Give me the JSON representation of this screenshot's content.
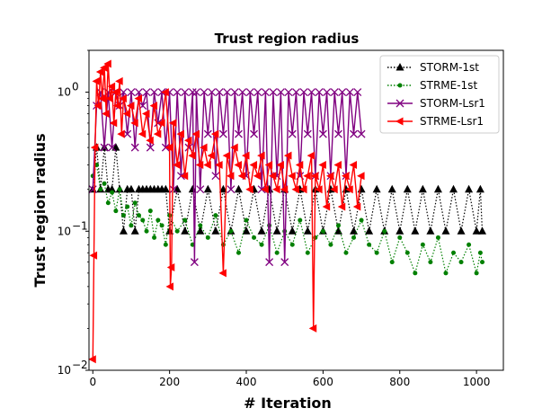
{
  "chart_data": {
    "type": "line",
    "title": "Trust region radius",
    "xlabel": "# Iteration",
    "ylabel": "Trust region radius",
    "xlim": [
      -10,
      1070
    ],
    "ylim": [
      0.01,
      2.0
    ],
    "yscale": "log",
    "grid": false,
    "legend_position": "top-right",
    "x_ticks": [
      {
        "value": 0,
        "label": "0"
      },
      {
        "value": 200,
        "label": "200"
      },
      {
        "value": 400,
        "label": "400"
      },
      {
        "value": 600,
        "label": "600"
      },
      {
        "value": 800,
        "label": "800"
      },
      {
        "value": 1000,
        "label": "1000"
      }
    ],
    "y_ticks": [
      {
        "value": 0.01,
        "base": "10",
        "exp": "−2"
      },
      {
        "value": 0.1,
        "base": "10",
        "exp": "−1"
      },
      {
        "value": 1,
        "base": "10",
        "exp": "0"
      }
    ],
    "series": [
      {
        "name": "STORM-1st",
        "color": "#000000",
        "marker": "triangle-up",
        "linestyle": "dotted",
        "x": [
          0,
          10,
          20,
          30,
          40,
          50,
          60,
          70,
          80,
          90,
          100,
          110,
          120,
          130,
          140,
          150,
          160,
          170,
          180,
          190,
          200,
          220,
          240,
          260,
          280,
          300,
          320,
          340,
          360,
          380,
          400,
          420,
          440,
          460,
          480,
          500,
          520,
          540,
          560,
          580,
          600,
          620,
          640,
          660,
          680,
          700,
          720,
          740,
          760,
          780,
          800,
          820,
          840,
          860,
          880,
          900,
          920,
          940,
          960,
          980,
          1000,
          1010,
          1015
        ],
        "y": [
          0.2,
          0.4,
          0.2,
          0.4,
          0.2,
          0.2,
          0.4,
          0.2,
          0.1,
          0.2,
          0.2,
          0.1,
          0.2,
          0.2,
          0.2,
          0.2,
          0.2,
          0.2,
          0.2,
          0.2,
          0.1,
          0.2,
          0.1,
          0.2,
          0.1,
          0.2,
          0.1,
          0.2,
          0.1,
          0.2,
          0.1,
          0.2,
          0.1,
          0.2,
          0.1,
          0.2,
          0.1,
          0.2,
          0.1,
          0.2,
          0.1,
          0.2,
          0.1,
          0.2,
          0.1,
          0.2,
          0.1,
          0.2,
          0.1,
          0.2,
          0.1,
          0.2,
          0.1,
          0.2,
          0.1,
          0.2,
          0.1,
          0.2,
          0.1,
          0.2,
          0.1,
          0.2,
          0.1
        ]
      },
      {
        "name": "STRME-1st",
        "color": "#008000",
        "marker": "circle",
        "linestyle": "dotted",
        "x": [
          0,
          10,
          20,
          30,
          40,
          50,
          60,
          70,
          80,
          90,
          100,
          110,
          120,
          130,
          140,
          150,
          160,
          170,
          180,
          190,
          200,
          220,
          240,
          260,
          280,
          300,
          320,
          340,
          360,
          380,
          400,
          420,
          440,
          460,
          480,
          500,
          520,
          540,
          560,
          580,
          600,
          620,
          640,
          660,
          680,
          700,
          720,
          740,
          760,
          780,
          800,
          820,
          840,
          860,
          880,
          900,
          920,
          940,
          960,
          980,
          1000,
          1010,
          1015
        ],
        "y": [
          0.25,
          0.3,
          0.2,
          0.22,
          0.16,
          0.19,
          0.14,
          0.2,
          0.13,
          0.15,
          0.11,
          0.16,
          0.13,
          0.12,
          0.1,
          0.14,
          0.09,
          0.12,
          0.11,
          0.08,
          0.13,
          0.1,
          0.12,
          0.08,
          0.11,
          0.09,
          0.13,
          0.08,
          0.1,
          0.07,
          0.12,
          0.09,
          0.08,
          0.11,
          0.07,
          0.1,
          0.08,
          0.12,
          0.07,
          0.09,
          0.1,
          0.08,
          0.11,
          0.07,
          0.09,
          0.12,
          0.08,
          0.07,
          0.1,
          0.06,
          0.09,
          0.07,
          0.05,
          0.08,
          0.06,
          0.09,
          0.05,
          0.07,
          0.06,
          0.08,
          0.05,
          0.07,
          0.06
        ]
      },
      {
        "name": "STORM-Lsr1",
        "color": "#800080",
        "marker": "x",
        "linestyle": "solid",
        "x": [
          0,
          10,
          20,
          30,
          40,
          50,
          60,
          70,
          80,
          90,
          100,
          110,
          120,
          130,
          140,
          150,
          160,
          170,
          180,
          190,
          200,
          210,
          220,
          230,
          240,
          250,
          260,
          265,
          270,
          280,
          290,
          300,
          310,
          320,
          330,
          340,
          350,
          360,
          370,
          380,
          390,
          400,
          410,
          420,
          430,
          440,
          450,
          460,
          470,
          480,
          490,
          500,
          510,
          520,
          530,
          540,
          550,
          560,
          570,
          580,
          590,
          600,
          610,
          620,
          630,
          640,
          650,
          660,
          670,
          680,
          690,
          700
        ],
        "y": [
          0.2,
          0.8,
          1,
          0.4,
          1,
          0.4,
          1,
          0.8,
          1,
          0.5,
          1,
          0.4,
          1,
          0.8,
          1,
          0.4,
          1,
          0.6,
          1,
          0.4,
          1,
          0.2,
          1,
          0.25,
          1,
          0.4,
          1,
          0.06,
          1,
          0.2,
          1,
          0.5,
          1,
          0.25,
          1,
          0.5,
          1,
          0.2,
          1,
          0.5,
          1,
          0.25,
          1,
          0.5,
          1,
          0.2,
          1,
          0.06,
          1,
          0.25,
          1,
          0.06,
          1,
          0.5,
          1,
          0.25,
          1,
          0.5,
          1,
          0.25,
          1,
          0.5,
          1,
          0.25,
          1,
          0.5,
          1,
          0.25,
          1,
          0.5,
          1,
          0.5
        ]
      },
      {
        "name": "STRME-Lsr1",
        "color": "#ff0000",
        "marker": "triangle-left",
        "linestyle": "solid",
        "x": [
          0,
          3,
          6,
          10,
          15,
          20,
          25,
          30,
          35,
          40,
          45,
          50,
          55,
          60,
          65,
          70,
          75,
          80,
          90,
          100,
          110,
          120,
          130,
          140,
          150,
          160,
          170,
          180,
          190,
          200,
          202,
          205,
          210,
          220,
          230,
          240,
          250,
          260,
          270,
          280,
          290,
          300,
          310,
          320,
          330,
          340,
          350,
          360,
          370,
          380,
          390,
          400,
          410,
          420,
          430,
          440,
          450,
          460,
          470,
          480,
          490,
          500,
          510,
          520,
          530,
          540,
          550,
          560,
          570,
          575,
          580,
          590,
          600,
          610,
          620,
          630,
          640,
          650,
          660,
          670,
          680,
          690,
          700
        ],
        "y": [
          0.012,
          0.067,
          0.4,
          1.2,
          0.8,
          1.4,
          0.9,
          1.5,
          0.7,
          1.6,
          0.9,
          1.1,
          0.6,
          1.0,
          0.8,
          1.2,
          0.5,
          0.9,
          0.7,
          0.8,
          0.6,
          0.9,
          0.5,
          0.7,
          0.45,
          0.8,
          0.5,
          0.6,
          1.0,
          0.4,
          0.04,
          0.055,
          0.6,
          0.3,
          0.5,
          0.25,
          0.45,
          0.35,
          0.5,
          0.3,
          0.4,
          0.3,
          0.35,
          0.5,
          0.3,
          0.05,
          0.35,
          0.25,
          0.4,
          0.3,
          0.25,
          0.35,
          0.2,
          0.3,
          0.25,
          0.35,
          0.2,
          0.3,
          0.25,
          0.2,
          0.3,
          0.2,
          0.35,
          0.25,
          0.2,
          0.3,
          0.2,
          0.25,
          0.35,
          0.02,
          0.25,
          0.2,
          0.3,
          0.15,
          0.25,
          0.2,
          0.3,
          0.15,
          0.25,
          0.2,
          0.3,
          0.15,
          0.25
        ]
      }
    ]
  }
}
